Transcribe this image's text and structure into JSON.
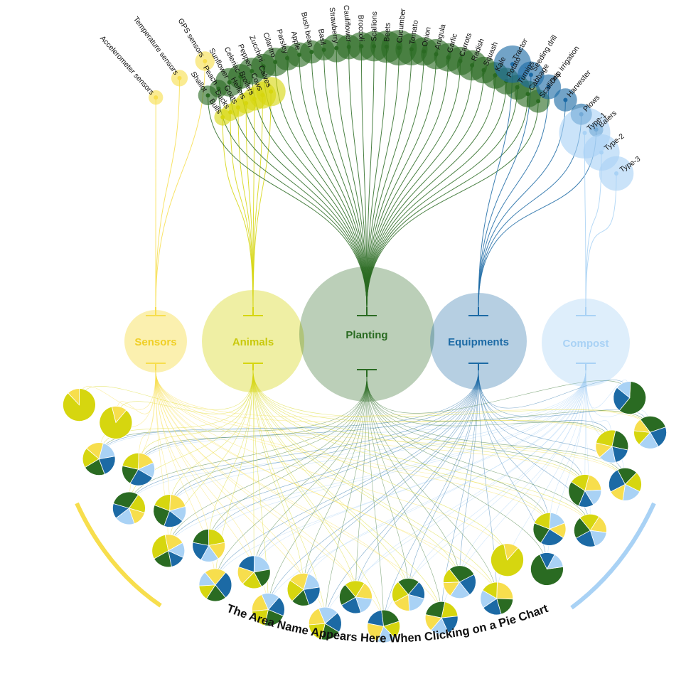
{
  "title": "The Area Name Appears Here When Clicking on a Pie Chart",
  "colors": {
    "Sensors": "#f7de4d",
    "Animals": "#d6d60f",
    "Planting": "#2a6b22",
    "Equipments": "#1c6aa5",
    "Compost": "#a9d2f5"
  },
  "categories": [
    {
      "name": "Sensors",
      "items": [
        {
          "label": "GPS sensors",
          "size": 0.55
        },
        {
          "label": "Temperature sensors",
          "size": 0.4
        },
        {
          "label": "Accelerometer sensors",
          "size": 0.3
        }
      ]
    },
    {
      "name": "Animals",
      "items": [
        {
          "label": "Calves",
          "size": 0.8
        },
        {
          "label": "Cows",
          "size": 0.7
        },
        {
          "label": "Broilers",
          "size": 0.55
        },
        {
          "label": "Heifers",
          "size": 0.45
        },
        {
          "label": "Goats",
          "size": 0.35
        },
        {
          "label": "Ducks",
          "size": 0.3
        },
        {
          "label": "Bulls",
          "size": 0.28
        }
      ]
    },
    {
      "name": "Planting",
      "items": [
        {
          "label": "Shallot",
          "size": 0.35
        },
        {
          "label": "Peach",
          "size": 0.3
        },
        {
          "label": "Sunflower",
          "size": 0.6
        },
        {
          "label": "Celeriac",
          "size": 0.5
        },
        {
          "label": "Pepper",
          "size": 0.55
        },
        {
          "label": "Zucchini",
          "size": 0.5
        },
        {
          "label": "Cilantro",
          "size": 0.6
        },
        {
          "label": "Parsley",
          "size": 0.5
        },
        {
          "label": "Apple",
          "size": 0.5
        },
        {
          "label": "Bush bean",
          "size": 0.45
        },
        {
          "label": "Basil",
          "size": 0.4
        },
        {
          "label": "Strawberry",
          "size": 0.6
        },
        {
          "label": "Cauliflower",
          "size": 0.5
        },
        {
          "label": "Broccoli",
          "size": 0.6
        },
        {
          "label": "Scallions",
          "size": 0.65
        },
        {
          "label": "Beets",
          "size": 0.7
        },
        {
          "label": "Cucumber",
          "size": 0.8
        },
        {
          "label": "Tomato",
          "size": 0.7
        },
        {
          "label": "Onion",
          "size": 0.6
        },
        {
          "label": "Arugula",
          "size": 0.65
        },
        {
          "label": "Garlic",
          "size": 0.6
        },
        {
          "label": "Carrots",
          "size": 0.6
        },
        {
          "label": "Radish",
          "size": 0.65
        },
        {
          "label": "Squash",
          "size": 0.55
        },
        {
          "label": "Kale",
          "size": 0.55
        },
        {
          "label": "Potato",
          "size": 0.55
        },
        {
          "label": "Turnips",
          "size": 0.5
        },
        {
          "label": "Cabbage",
          "size": 0.55
        },
        {
          "label": "Scallions",
          "size": 0.45
        }
      ]
    },
    {
      "name": "Equipments",
      "items": [
        {
          "label": "Tractor",
          "size": 0.85
        },
        {
          "label": "Seeding drill",
          "size": 0.55
        },
        {
          "label": "Drip irrigation",
          "size": 0.5
        },
        {
          "label": "Harvester",
          "size": 0.45
        },
        {
          "label": "Plows",
          "size": 0.4
        },
        {
          "label": "Balers",
          "size": 0.2
        }
      ]
    },
    {
      "name": "Compost",
      "items": [
        {
          "label": "Type-1",
          "size": 1.0
        },
        {
          "label": "Type-2",
          "size": 0.6
        },
        {
          "label": "Type-3",
          "size": 0.55
        }
      ]
    }
  ],
  "pies": [
    {
      "Animals": 0.88,
      "Sensors": 0.12
    },
    {
      "Animals": 0.85,
      "Sensors": 0.15
    },
    {
      "Equipments": 0.22,
      "Planting": 0.22,
      "Animals": 0.2,
      "Sensors": 0.18,
      "Compost": 0.18
    },
    {
      "Equipments": 0.25,
      "Planting": 0.2,
      "Animals": 0.22,
      "Sensors": 0.18,
      "Compost": 0.15
    },
    {
      "Compost": 0.2,
      "Equipments": 0.15,
      "Planting": 0.3,
      "Animals": 0.2,
      "Sensors": 0.15
    },
    {
      "Planting": 0.25,
      "Animals": 0.2,
      "Sensors": 0.2,
      "Compost": 0.15,
      "Equipments": 0.2
    },
    {
      "Animals": 0.3,
      "Sensors": 0.2,
      "Compost": 0.15,
      "Equipments": 0.15,
      "Planting": 0.2
    },
    {
      "Planting": 0.22,
      "Animals": 0.22,
      "Sensors": 0.18,
      "Compost": 0.18,
      "Equipments": 0.2
    },
    {
      "Sensors": 0.22,
      "Equipments": 0.28,
      "Planting": 0.2,
      "Animals": 0.15,
      "Compost": 0.15
    },
    {
      "Compost": 0.22,
      "Planting": 0.2,
      "Animals": 0.2,
      "Sensors": 0.18,
      "Equipments": 0.2
    },
    {
      "Equipments": 0.2,
      "Planting": 0.22,
      "Animals": 0.2,
      "Sensors": 0.2,
      "Compost": 0.18
    },
    {
      "Equipments": 0.22,
      "Planting": 0.18,
      "Animals": 0.22,
      "Sensors": 0.2,
      "Compost": 0.18
    },
    {
      "Planting": 0.2,
      "Animals": 0.2,
      "Sensors": 0.2,
      "Compost": 0.2,
      "Equipments": 0.2
    },
    {
      "Equipments": 0.22,
      "Planting": 0.22,
      "Animals": 0.2,
      "Sensors": 0.18,
      "Compost": 0.18
    },
    {
      "Sensors": 0.22,
      "Equipments": 0.2,
      "Planting": 0.22,
      "Animals": 0.18,
      "Compost": 0.18
    },
    {
      "Animals": 0.22,
      "Planting": 0.22,
      "Equipments": 0.18,
      "Compost": 0.2,
      "Sensors": 0.18
    },
    {
      "Planting": 0.25,
      "Animals": 0.2,
      "Equipments": 0.2,
      "Compost": 0.18,
      "Sensors": 0.17
    },
    {
      "Planting": 0.28,
      "Equipments": 0.22,
      "Compost": 0.2,
      "Sensors": 0.15,
      "Animals": 0.15
    },
    {
      "Sensors": 0.25,
      "Planting": 0.2,
      "Equipments": 0.2,
      "Compost": 0.18,
      "Animals": 0.17
    },
    {
      "Animals": 0.85,
      "Sensors": 0.15
    },
    {
      "Planting": 0.7,
      "Equipments": 0.15,
      "Compost": 0.15
    },
    {
      "Equipments": 0.25,
      "Planting": 0.22,
      "Animals": 0.2,
      "Compost": 0.18,
      "Sensors": 0.15
    },
    {
      "Equipments": 0.22,
      "Planting": 0.22,
      "Animals": 0.2,
      "Sensors": 0.18,
      "Compost": 0.18
    },
    {
      "Planting": 0.28,
      "Animals": 0.2,
      "Sensors": 0.2,
      "Compost": 0.17,
      "Equipments": 0.15
    },
    {
      "Equipments": 0.25,
      "Planting": 0.2,
      "Animals": 0.2,
      "Compost": 0.2,
      "Sensors": 0.15
    },
    {
      "Animals": 0.25,
      "Planting": 0.25,
      "Equipments": 0.18,
      "Compost": 0.17,
      "Sensors": 0.15
    },
    {
      "Planting": 0.3,
      "Equipments": 0.22,
      "Compost": 0.2,
      "Animals": 0.15,
      "Sensors": 0.13
    },
    {
      "Planting": 0.6,
      "Equipments": 0.25,
      "Compost": 0.15
    }
  ]
}
